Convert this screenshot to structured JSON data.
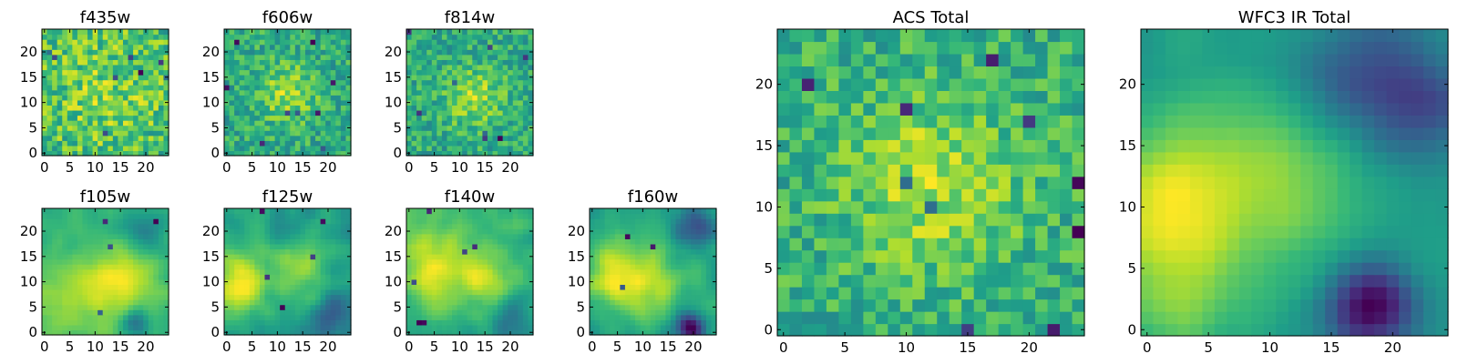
{
  "chart_data": [
    {
      "type": "heatmap",
      "title": "f435w",
      "size": 25,
      "x_ticks": [
        "0",
        "5",
        "10",
        "15",
        "20"
      ],
      "y_ticks": [
        "0",
        "5",
        "10",
        "15",
        "20"
      ],
      "colormap": "viridis",
      "mode": "noise",
      "seed": 11,
      "blobs": [
        {
          "x": 12,
          "y": 12,
          "sigma": 8,
          "amp": 0.2
        }
      ],
      "noise": 0.7,
      "dark_spots": 8
    },
    {
      "type": "heatmap",
      "title": "f606w",
      "size": 25,
      "x_ticks": [
        "0",
        "5",
        "10",
        "15",
        "20"
      ],
      "y_ticks": [
        "0",
        "5",
        "10",
        "15",
        "20"
      ],
      "colormap": "viridis",
      "mode": "noise",
      "seed": 23,
      "blobs": [
        {
          "x": 12,
          "y": 12,
          "sigma": 4,
          "amp": 0.45
        }
      ],
      "noise": 0.6,
      "dark_spots": 9
    },
    {
      "type": "heatmap",
      "title": "f814w",
      "size": 25,
      "x_ticks": [
        "0",
        "5",
        "10",
        "15",
        "20"
      ],
      "y_ticks": [
        "0",
        "5",
        "10",
        "15",
        "20"
      ],
      "colormap": "viridis",
      "mode": "noise",
      "seed": 37,
      "blobs": [
        {
          "x": 13,
          "y": 11,
          "sigma": 4,
          "amp": 0.45
        }
      ],
      "noise": 0.6,
      "dark_spots": 8
    },
    {
      "type": "heatmap",
      "title": "f105w",
      "size": 25,
      "x_ticks": [
        "0",
        "5",
        "10",
        "15",
        "20"
      ],
      "y_ticks": [
        "0",
        "5",
        "10",
        "15",
        "20"
      ],
      "colormap": "viridis",
      "mode": "smooth",
      "seed": 41,
      "blobs": [
        {
          "x": 15,
          "y": 10,
          "sigma": 5,
          "amp": 0.6
        },
        {
          "x": 3,
          "y": 6,
          "sigma": 6,
          "amp": 0.35
        },
        {
          "x": 18,
          "y": 2,
          "sigma": 2,
          "amp": -0.6
        },
        {
          "x": 20,
          "y": 20,
          "sigma": 3,
          "amp": -0.4
        }
      ],
      "noise": 0.3,
      "dark_spots": 4
    },
    {
      "type": "heatmap",
      "title": "f125w",
      "size": 25,
      "x_ticks": [
        "0",
        "5",
        "10",
        "15",
        "20"
      ],
      "y_ticks": [
        "0",
        "5",
        "10",
        "15",
        "20"
      ],
      "colormap": "viridis",
      "mode": "smooth",
      "seed": 53,
      "blobs": [
        {
          "x": 2,
          "y": 10,
          "sigma": 4,
          "amp": 0.55
        },
        {
          "x": 15,
          "y": 12,
          "sigma": 4,
          "amp": 0.35
        },
        {
          "x": 20,
          "y": 4,
          "sigma": 3,
          "amp": -0.4
        }
      ],
      "noise": 0.4,
      "dark_spots": 5
    },
    {
      "type": "heatmap",
      "title": "f140w",
      "size": 25,
      "x_ticks": [
        "0",
        "5",
        "10",
        "15",
        "20"
      ],
      "y_ticks": [
        "0",
        "5",
        "10",
        "15",
        "20"
      ],
      "colormap": "viridis",
      "mode": "smooth",
      "seed": 67,
      "blobs": [
        {
          "x": 4,
          "y": 14,
          "sigma": 5,
          "amp": 0.5
        },
        {
          "x": 15,
          "y": 11,
          "sigma": 4,
          "amp": 0.35
        },
        {
          "x": 20,
          "y": 3,
          "sigma": 3,
          "amp": -0.35
        }
      ],
      "noise": 0.35,
      "dark_spots": 6
    },
    {
      "type": "heatmap",
      "title": "f160w",
      "size": 25,
      "x_ticks": [
        "0",
        "5",
        "10",
        "15",
        "20"
      ],
      "y_ticks": [
        "0",
        "5",
        "10",
        "15",
        "20"
      ],
      "colormap": "viridis",
      "mode": "smooth",
      "seed": 79,
      "blobs": [
        {
          "x": 10,
          "y": 10,
          "sigma": 6,
          "amp": 0.45
        },
        {
          "x": 3,
          "y": 12,
          "sigma": 4,
          "amp": 0.3
        },
        {
          "x": 19,
          "y": 1,
          "sigma": 2,
          "amp": -0.8
        },
        {
          "x": 20,
          "y": 21,
          "sigma": 3,
          "amp": -0.45
        }
      ],
      "noise": 0.3,
      "dark_spots": 3
    },
    {
      "type": "heatmap",
      "title": "ACS Total",
      "size": 25,
      "x_ticks": [
        "0",
        "5",
        "10",
        "15",
        "20"
      ],
      "y_ticks": [
        "0",
        "5",
        "10",
        "15",
        "20"
      ],
      "colormap": "viridis",
      "mode": "noise",
      "seed": 97,
      "blobs": [
        {
          "x": 12,
          "y": 12,
          "sigma": 5,
          "amp": 0.4
        }
      ],
      "noise": 0.55,
      "dark_spots": 10
    },
    {
      "type": "heatmap",
      "title": "WFC3 IR Total",
      "size": 25,
      "x_ticks": [
        "0",
        "5",
        "10",
        "15",
        "20"
      ],
      "y_ticks": [
        "0",
        "5",
        "10",
        "15",
        "20"
      ],
      "colormap": "viridis",
      "mode": "smooth",
      "seed": 113,
      "blobs": [
        {
          "x": 1,
          "y": 11,
          "sigma": 4,
          "amp": 0.6
        },
        {
          "x": 10,
          "y": 12,
          "sigma": 6,
          "amp": 0.5
        },
        {
          "x": 2,
          "y": 3,
          "sigma": 4,
          "amp": 0.4
        },
        {
          "x": 18,
          "y": 2,
          "sigma": 2.5,
          "amp": -1.0
        },
        {
          "x": 21,
          "y": 19,
          "sigma": 4,
          "amp": -0.6
        },
        {
          "x": 15,
          "y": 21,
          "sigma": 3,
          "amp": -0.3
        }
      ],
      "noise": 0.2,
      "dark_spots": 0
    }
  ]
}
